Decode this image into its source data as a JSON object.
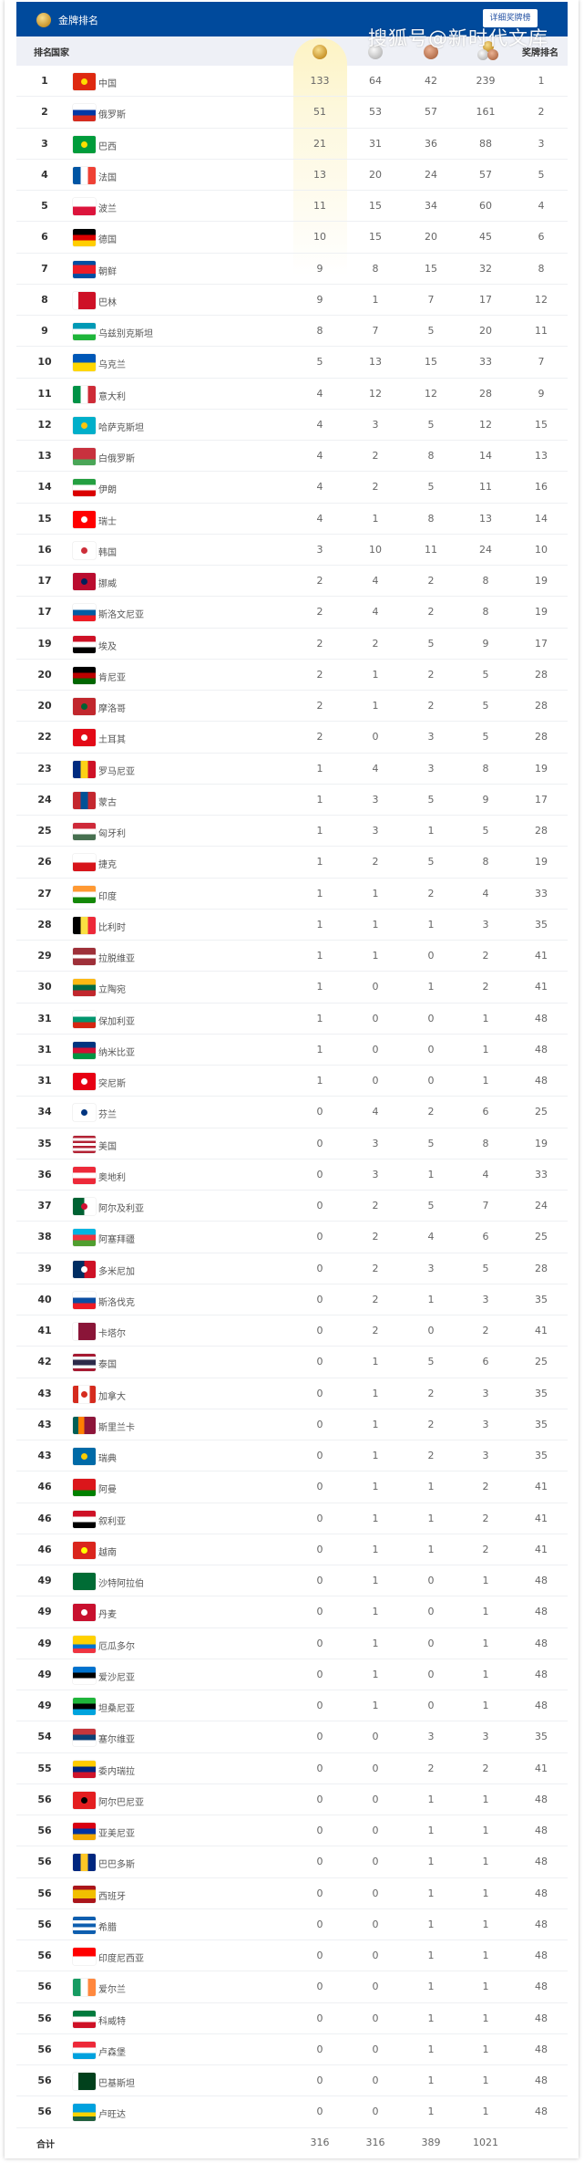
{
  "header": {
    "title": "金牌排名",
    "detail_button": "详细奖牌榜",
    "watermark": "搜狐号@新时代文库"
  },
  "columns": {
    "rank": "排名",
    "country": "国家",
    "gold": "gold-medal-icon",
    "silver": "silver-medal-icon",
    "bronze": "bronze-medal-icon",
    "total": "all-medals-icon",
    "medal_rank": "奖牌排名"
  },
  "rows": [
    {
      "rank": "1",
      "country": "中国",
      "gold": "133",
      "silver": "64",
      "bronze": "42",
      "total": "239",
      "medal_rank": "1",
      "flag": "s:#de2910",
      "emblem": "#ffde00"
    },
    {
      "rank": "2",
      "country": "俄罗斯",
      "gold": "51",
      "silver": "53",
      "bronze": "57",
      "total": "161",
      "medal_rank": "2",
      "flag": "h:#ffffff,#0039a6,#d52b1e"
    },
    {
      "rank": "3",
      "country": "巴西",
      "gold": "21",
      "silver": "31",
      "bronze": "36",
      "total": "88",
      "medal_rank": "3",
      "flag": "s:#009c3b",
      "emblem": "#ffdf00"
    },
    {
      "rank": "4",
      "country": "法国",
      "gold": "13",
      "silver": "20",
      "bronze": "24",
      "total": "57",
      "medal_rank": "5",
      "flag": "v:#0055a4,#ffffff,#ef4135"
    },
    {
      "rank": "5",
      "country": "波兰",
      "gold": "11",
      "silver": "15",
      "bronze": "34",
      "total": "60",
      "medal_rank": "4",
      "flag": "h:#ffffff,#dc143c"
    },
    {
      "rank": "6",
      "country": "德国",
      "gold": "10",
      "silver": "15",
      "bronze": "20",
      "total": "45",
      "medal_rank": "6",
      "flag": "h:#000000,#dd0000,#ffce00"
    },
    {
      "rank": "7",
      "country": "朝鲜",
      "gold": "9",
      "silver": "8",
      "bronze": "15",
      "total": "32",
      "medal_rank": "8",
      "flag": "h:#024fa2,#ed1c27,#ed1c27,#024fa2"
    },
    {
      "rank": "8",
      "country": "巴林",
      "gold": "9",
      "silver": "1",
      "bronze": "7",
      "total": "17",
      "medal_rank": "12",
      "flag": "v:#ffffff,#ce1126,#ce1126,#ce1126"
    },
    {
      "rank": "9",
      "country": "乌兹别克斯坦",
      "gold": "8",
      "silver": "7",
      "bronze": "5",
      "total": "20",
      "medal_rank": "11",
      "flag": "h:#0099b5,#ffffff,#1eb53a"
    },
    {
      "rank": "10",
      "country": "乌克兰",
      "gold": "5",
      "silver": "13",
      "bronze": "15",
      "total": "33",
      "medal_rank": "7",
      "flag": "h:#0057b7,#ffd700"
    },
    {
      "rank": "11",
      "country": "意大利",
      "gold": "4",
      "silver": "12",
      "bronze": "12",
      "total": "28",
      "medal_rank": "9",
      "flag": "v:#009246,#ffffff,#ce2b37"
    },
    {
      "rank": "12",
      "country": "哈萨克斯坦",
      "gold": "4",
      "silver": "3",
      "bronze": "5",
      "total": "12",
      "medal_rank": "15",
      "flag": "s:#00afca",
      "emblem": "#fec50c"
    },
    {
      "rank": "13",
      "country": "白俄罗斯",
      "gold": "4",
      "silver": "2",
      "bronze": "8",
      "total": "14",
      "medal_rank": "13",
      "flag": "h:#c8313e,#c8313e,#4aa657"
    },
    {
      "rank": "14",
      "country": "伊朗",
      "gold": "4",
      "silver": "2",
      "bronze": "5",
      "total": "11",
      "medal_rank": "16",
      "flag": "h:#239f40,#ffffff,#da0000"
    },
    {
      "rank": "15",
      "country": "瑞士",
      "gold": "4",
      "silver": "1",
      "bronze": "8",
      "total": "13",
      "medal_rank": "14",
      "flag": "s:#ff0000",
      "emblem": "#ffffff"
    },
    {
      "rank": "16",
      "country": "韩国",
      "gold": "3",
      "silver": "10",
      "bronze": "11",
      "total": "24",
      "medal_rank": "10",
      "flag": "s:#ffffff",
      "emblem": "#cd2e3a"
    },
    {
      "rank": "17",
      "country": "挪威",
      "gold": "2",
      "silver": "4",
      "bronze": "2",
      "total": "8",
      "medal_rank": "19",
      "flag": "s:#ba0c2f",
      "emblem": "#00205b"
    },
    {
      "rank": "17",
      "country": "斯洛文尼亚",
      "gold": "2",
      "silver": "4",
      "bronze": "2",
      "total": "8",
      "medal_rank": "19",
      "flag": "h:#ffffff,#005da4,#ed1c24"
    },
    {
      "rank": "19",
      "country": "埃及",
      "gold": "2",
      "silver": "2",
      "bronze": "5",
      "total": "9",
      "medal_rank": "17",
      "flag": "h:#ce1126,#ffffff,#000000"
    },
    {
      "rank": "20",
      "country": "肯尼亚",
      "gold": "2",
      "silver": "1",
      "bronze": "2",
      "total": "5",
      "medal_rank": "28",
      "flag": "h:#000000,#bb0000,#006600"
    },
    {
      "rank": "20",
      "country": "摩洛哥",
      "gold": "2",
      "silver": "1",
      "bronze": "2",
      "total": "5",
      "medal_rank": "28",
      "flag": "s:#c1272d",
      "emblem": "#006233"
    },
    {
      "rank": "22",
      "country": "土耳其",
      "gold": "2",
      "silver": "0",
      "bronze": "3",
      "total": "5",
      "medal_rank": "28",
      "flag": "s:#e30a17",
      "emblem": "#ffffff"
    },
    {
      "rank": "23",
      "country": "罗马尼亚",
      "gold": "1",
      "silver": "4",
      "bronze": "3",
      "total": "8",
      "medal_rank": "19",
      "flag": "v:#002b7f,#fcd116,#ce1126"
    },
    {
      "rank": "24",
      "country": "蒙古",
      "gold": "1",
      "silver": "3",
      "bronze": "5",
      "total": "9",
      "medal_rank": "17",
      "flag": "v:#c4272f,#015197,#c4272f"
    },
    {
      "rank": "25",
      "country": "匈牙利",
      "gold": "1",
      "silver": "3",
      "bronze": "1",
      "total": "5",
      "medal_rank": "28",
      "flag": "h:#ce2939,#ffffff,#477050"
    },
    {
      "rank": "26",
      "country": "捷克",
      "gold": "1",
      "silver": "2",
      "bronze": "5",
      "total": "8",
      "medal_rank": "19",
      "flag": "h:#ffffff,#d7141a"
    },
    {
      "rank": "27",
      "country": "印度",
      "gold": "1",
      "silver": "1",
      "bronze": "2",
      "total": "4",
      "medal_rank": "33",
      "flag": "h:#ff9933,#ffffff,#138808"
    },
    {
      "rank": "28",
      "country": "比利时",
      "gold": "1",
      "silver": "1",
      "bronze": "1",
      "total": "3",
      "medal_rank": "35",
      "flag": "v:#000000,#fae042,#ed2939"
    },
    {
      "rank": "29",
      "country": "拉脱维亚",
      "gold": "1",
      "silver": "1",
      "bronze": "0",
      "total": "2",
      "medal_rank": "41",
      "flag": "h:#9e3039,#9e3039,#ffffff,#9e3039,#9e3039"
    },
    {
      "rank": "30",
      "country": "立陶宛",
      "gold": "1",
      "silver": "0",
      "bronze": "1",
      "total": "2",
      "medal_rank": "41",
      "flag": "h:#fdb913,#006a44,#c1272d"
    },
    {
      "rank": "31",
      "country": "保加利亚",
      "gold": "1",
      "silver": "0",
      "bronze": "0",
      "total": "1",
      "medal_rank": "48",
      "flag": "h:#ffffff,#00966e,#d62612"
    },
    {
      "rank": "31",
      "country": "纳米比亚",
      "gold": "1",
      "silver": "0",
      "bronze": "0",
      "total": "1",
      "medal_rank": "48",
      "flag": "h:#003580,#d21034,#009543"
    },
    {
      "rank": "31",
      "country": "突尼斯",
      "gold": "1",
      "silver": "0",
      "bronze": "0",
      "total": "1",
      "medal_rank": "48",
      "flag": "s:#e70013",
      "emblem": "#ffffff"
    },
    {
      "rank": "34",
      "country": "芬兰",
      "gold": "0",
      "silver": "4",
      "bronze": "2",
      "total": "6",
      "medal_rank": "25",
      "flag": "s:#ffffff",
      "emblem": "#003580"
    },
    {
      "rank": "35",
      "country": "美国",
      "gold": "0",
      "silver": "3",
      "bronze": "5",
      "total": "8",
      "medal_rank": "19",
      "flag": "h:#b22234,#ffffff,#b22234,#ffffff,#b22234,#ffffff,#b22234"
    },
    {
      "rank": "36",
      "country": "奥地利",
      "gold": "0",
      "silver": "3",
      "bronze": "1",
      "total": "4",
      "medal_rank": "33",
      "flag": "h:#ed2939,#ffffff,#ed2939"
    },
    {
      "rank": "37",
      "country": "阿尔及利亚",
      "gold": "0",
      "silver": "2",
      "bronze": "5",
      "total": "7",
      "medal_rank": "24",
      "flag": "v:#006233,#ffffff",
      "emblem": "#d21034"
    },
    {
      "rank": "38",
      "country": "阿塞拜疆",
      "gold": "0",
      "silver": "2",
      "bronze": "4",
      "total": "6",
      "medal_rank": "25",
      "flag": "h:#00b5e2,#ef3340,#509e2f"
    },
    {
      "rank": "39",
      "country": "多米尼加",
      "gold": "0",
      "silver": "2",
      "bronze": "3",
      "total": "5",
      "medal_rank": "28",
      "flag": "v:#002d62,#ce1126",
      "emblem": "#ffffff"
    },
    {
      "rank": "40",
      "country": "斯洛伐克",
      "gold": "0",
      "silver": "2",
      "bronze": "1",
      "total": "3",
      "medal_rank": "35",
      "flag": "h:#ffffff,#0b4ea2,#ee1c25"
    },
    {
      "rank": "41",
      "country": "卡塔尔",
      "gold": "0",
      "silver": "2",
      "bronze": "0",
      "total": "2",
      "medal_rank": "41",
      "flag": "v:#ffffff,#8a1538,#8a1538,#8a1538"
    },
    {
      "rank": "42",
      "country": "泰国",
      "gold": "0",
      "silver": "1",
      "bronze": "5",
      "total": "6",
      "medal_rank": "25",
      "flag": "h:#a51931,#f4f5f8,#2d2a4a,#2d2a4a,#f4f5f8,#a51931"
    },
    {
      "rank": "43",
      "country": "加拿大",
      "gold": "0",
      "silver": "1",
      "bronze": "2",
      "total": "3",
      "medal_rank": "35",
      "flag": "v:#d52b1e,#ffffff,#ffffff,#d52b1e",
      "emblem": "#d52b1e"
    },
    {
      "rank": "43",
      "country": "斯里兰卡",
      "gold": "0",
      "silver": "1",
      "bronze": "2",
      "total": "3",
      "medal_rank": "35",
      "flag": "v:#005f56,#ff7f00,#8d153a,#8d153a"
    },
    {
      "rank": "43",
      "country": "瑞典",
      "gold": "0",
      "silver": "1",
      "bronze": "2",
      "total": "3",
      "medal_rank": "35",
      "flag": "s:#006aa7",
      "emblem": "#fecc00"
    },
    {
      "rank": "46",
      "country": "阿曼",
      "gold": "0",
      "silver": "1",
      "bronze": "1",
      "total": "2",
      "medal_rank": "41",
      "flag": "h:#db161b,#db161b,#008000"
    },
    {
      "rank": "46",
      "country": "叙利亚",
      "gold": "0",
      "silver": "1",
      "bronze": "1",
      "total": "2",
      "medal_rank": "41",
      "flag": "h:#ce1126,#ffffff,#000000"
    },
    {
      "rank": "46",
      "country": "越南",
      "gold": "0",
      "silver": "1",
      "bronze": "1",
      "total": "2",
      "medal_rank": "41",
      "flag": "s:#da251d",
      "emblem": "#ffff00"
    },
    {
      "rank": "49",
      "country": "沙特阿拉伯",
      "gold": "0",
      "silver": "1",
      "bronze": "0",
      "total": "1",
      "medal_rank": "48",
      "flag": "s:#006c35"
    },
    {
      "rank": "49",
      "country": "丹麦",
      "gold": "0",
      "silver": "1",
      "bronze": "0",
      "total": "1",
      "medal_rank": "48",
      "flag": "s:#c8102e",
      "emblem": "#ffffff"
    },
    {
      "rank": "49",
      "country": "厄瓜多尔",
      "gold": "0",
      "silver": "1",
      "bronze": "0",
      "total": "1",
      "medal_rank": "48",
      "flag": "h:#ffd100,#ffd100,#0072ce,#ef3340"
    },
    {
      "rank": "49",
      "country": "爱沙尼亚",
      "gold": "0",
      "silver": "1",
      "bronze": "0",
      "total": "1",
      "medal_rank": "48",
      "flag": "h:#0072ce,#000000,#ffffff"
    },
    {
      "rank": "49",
      "country": "坦桑尼亚",
      "gold": "0",
      "silver": "1",
      "bronze": "0",
      "total": "1",
      "medal_rank": "48",
      "flag": "h:#1eb53a,#000000,#00a3dd"
    },
    {
      "rank": "54",
      "country": "塞尔维亚",
      "gold": "0",
      "silver": "0",
      "bronze": "3",
      "total": "3",
      "medal_rank": "35",
      "flag": "h:#c6363c,#0c4076,#ffffff"
    },
    {
      "rank": "55",
      "country": "委内瑞拉",
      "gold": "0",
      "silver": "0",
      "bronze": "2",
      "total": "2",
      "medal_rank": "41",
      "flag": "h:#ffcc00,#00247d,#cf142b"
    },
    {
      "rank": "56",
      "country": "阿尔巴尼亚",
      "gold": "0",
      "silver": "0",
      "bronze": "1",
      "total": "1",
      "medal_rank": "48",
      "flag": "s:#e41e20",
      "emblem": "#000000"
    },
    {
      "rank": "56",
      "country": "亚美尼亚",
      "gold": "0",
      "silver": "0",
      "bronze": "1",
      "total": "1",
      "medal_rank": "48",
      "flag": "h:#d90012,#0033a0,#f2a800"
    },
    {
      "rank": "56",
      "country": "巴巴多斯",
      "gold": "0",
      "silver": "0",
      "bronze": "1",
      "total": "1",
      "medal_rank": "48",
      "flag": "v:#00267f,#ffc726,#00267f"
    },
    {
      "rank": "56",
      "country": "西班牙",
      "gold": "0",
      "silver": "0",
      "bronze": "1",
      "total": "1",
      "medal_rank": "48",
      "flag": "h:#aa151b,#f1bf00,#f1bf00,#aa151b"
    },
    {
      "rank": "56",
      "country": "希腊",
      "gold": "0",
      "silver": "0",
      "bronze": "1",
      "total": "1",
      "medal_rank": "48",
      "flag": "h:#0d5eaf,#ffffff,#0d5eaf,#ffffff,#0d5eaf"
    },
    {
      "rank": "56",
      "country": "印度尼西亚",
      "gold": "0",
      "silver": "0",
      "bronze": "1",
      "total": "1",
      "medal_rank": "48",
      "flag": "h:#ff0000,#ffffff"
    },
    {
      "rank": "56",
      "country": "爱尔兰",
      "gold": "0",
      "silver": "0",
      "bronze": "1",
      "total": "1",
      "medal_rank": "48",
      "flag": "v:#169b62,#ffffff,#ff883e"
    },
    {
      "rank": "56",
      "country": "科威特",
      "gold": "0",
      "silver": "0",
      "bronze": "1",
      "total": "1",
      "medal_rank": "48",
      "flag": "h:#007a3d,#ffffff,#ce1126"
    },
    {
      "rank": "56",
      "country": "卢森堡",
      "gold": "0",
      "silver": "0",
      "bronze": "1",
      "total": "1",
      "medal_rank": "48",
      "flag": "h:#ed2939,#ffffff,#00a1de"
    },
    {
      "rank": "56",
      "country": "巴基斯坦",
      "gold": "0",
      "silver": "0",
      "bronze": "1",
      "total": "1",
      "medal_rank": "48",
      "flag": "v:#ffffff,#01411c,#01411c,#01411c"
    },
    {
      "rank": "56",
      "country": "卢旺达",
      "gold": "0",
      "silver": "0",
      "bronze": "1",
      "total": "1",
      "medal_rank": "48",
      "flag": "h:#00a1de,#00a1de,#fad201,#20603d"
    }
  ],
  "totals": {
    "label": "合计",
    "gold": "316",
    "silver": "316",
    "bronze": "389",
    "total": "1021"
  }
}
